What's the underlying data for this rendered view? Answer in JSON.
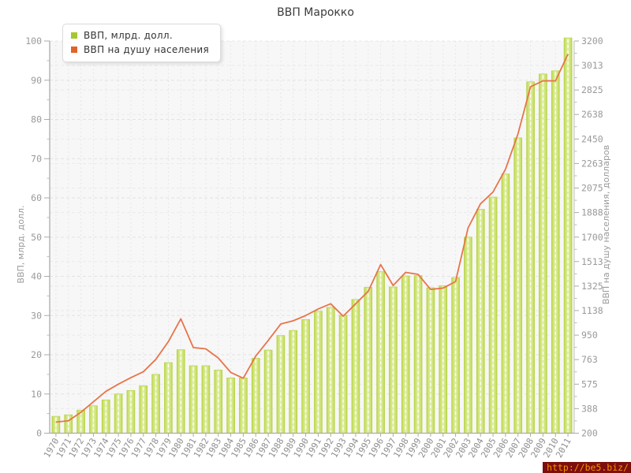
{
  "title": "ВВП Марокко",
  "legend": {
    "items": [
      {
        "label": "ВВП, млрд. долл.",
        "color": "#a6c82d"
      },
      {
        "label": "ВВП на душу населения",
        "color": "#e2622d"
      }
    ]
  },
  "watermark": {
    "text": "http://be5.biz/",
    "bg": "#7c0e0e",
    "fg": "#fc9300"
  },
  "chart_data": {
    "type": "bar",
    "title": "ВВП Марокко",
    "categories": [
      "1970",
      "1971",
      "1972",
      "1973",
      "1974",
      "1975",
      "1976",
      "1977",
      "1978",
      "1979",
      "1980",
      "1981",
      "1982",
      "1983",
      "1984",
      "1985",
      "1986",
      "1987",
      "1988",
      "1989",
      "1990",
      "1991",
      "1992",
      "1993",
      "1994",
      "1995",
      "1996",
      "1997",
      "1998",
      "1999",
      "2000",
      "2001",
      "2002",
      "2003",
      "2004",
      "2005",
      "2006",
      "2007",
      "2008",
      "2009",
      "2010",
      "2011"
    ],
    "series": [
      {
        "name": "ВВП, млрд. долл.",
        "type": "bar",
        "axis": "left",
        "color": "#c3dc55",
        "values": [
          4.3,
          4.7,
          5.9,
          7.0,
          8.5,
          10.0,
          10.9,
          12.1,
          15.0,
          18.0,
          21.3,
          17.2,
          17.2,
          16.1,
          14.1,
          14.1,
          19.1,
          21.2,
          24.9,
          26.2,
          29.0,
          31.1,
          32.1,
          30.1,
          34.1,
          37.2,
          41.2,
          37.3,
          40.1,
          40.2,
          37.1,
          37.6,
          39.7,
          50.0,
          57.1,
          60.2,
          66.1,
          75.3,
          89.6,
          91.6,
          92.4,
          100.8
        ]
      },
      {
        "name": "ВВП на душу населения",
        "type": "line",
        "axis": "right",
        "color": "#e8744a",
        "values": [
          285,
          295,
          360,
          440,
          520,
          575,
          625,
          670,
          765,
          900,
          1075,
          855,
          845,
          775,
          665,
          620,
          790,
          910,
          1035,
          1060,
          1100,
          1150,
          1190,
          1095,
          1190,
          1285,
          1490,
          1330,
          1430,
          1415,
          1300,
          1310,
          1360,
          1770,
          1955,
          2045,
          2220,
          2490,
          2850,
          2895,
          2895,
          3100
        ]
      }
    ],
    "left_axis": {
      "label": "ВВП, млрд. долл.",
      "min": 0,
      "max": 100,
      "ticks": [
        0,
        10,
        20,
        30,
        40,
        50,
        60,
        70,
        80,
        90,
        100
      ]
    },
    "right_axis": {
      "label": "ВВП на душу населения, долларов",
      "min": 200,
      "max": 3200,
      "ticks": [
        200,
        388,
        575,
        763,
        950,
        1138,
        1325,
        1513,
        1700,
        1888,
        2075,
        2263,
        2450,
        2638,
        2825,
        3013,
        3200
      ]
    },
    "grid": true,
    "legend_position": "top-left"
  }
}
